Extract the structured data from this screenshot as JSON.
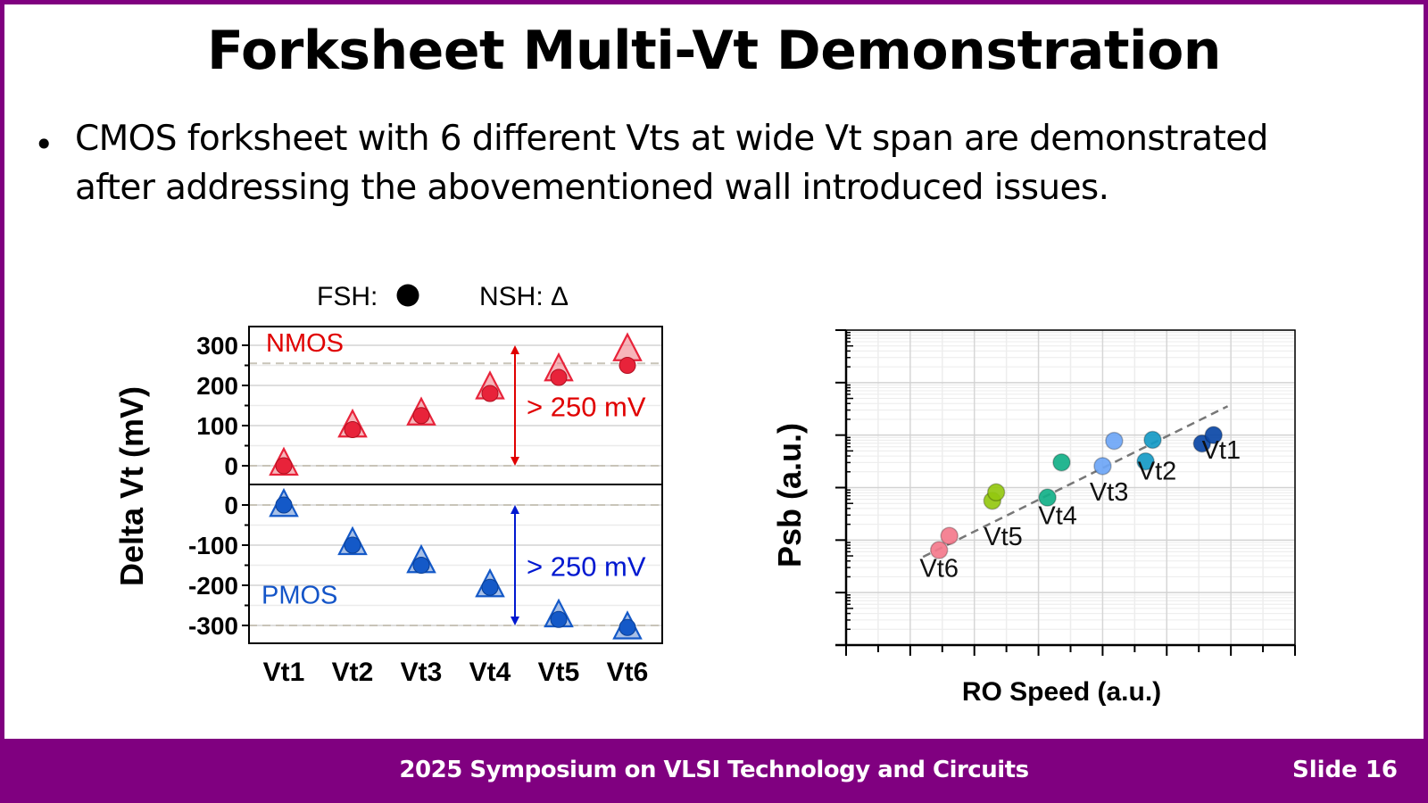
{
  "slide": {
    "title": "Forksheet Multi-Vt Demonstration",
    "bullet": "CMOS forksheet with 6 different Vts at wide Vt span are demonstrated after addressing the abovementioned wall introduced issues.",
    "bullet_line1": "CMOS forksheet with 6 different Vts at wide Vt span are demonstrated",
    "bullet_line2": "after addressing the abovementioned wall introduced issues.",
    "footer": "2025 Symposium on VLSI Technology and Circuits",
    "slide_number": "Slide 16",
    "brand_color": "#800080"
  },
  "chart_data": [
    {
      "type": "scatter",
      "title": "",
      "legend": {
        "position": "top",
        "entries": [
          {
            "label": "FSH:",
            "marker": "circle"
          },
          {
            "label": "NSH:",
            "marker": "triangle",
            "symbol": "Δ"
          }
        ]
      },
      "ylabel": "Delta Vt (mV)",
      "xlabel": "",
      "categories": [
        "Vt1",
        "Vt2",
        "Vt3",
        "Vt4",
        "Vt5",
        "Vt6"
      ],
      "panels": [
        {
          "name": "NMOS",
          "color": "#e8233a",
          "label_color": "#e00000",
          "ylim": [
            -40,
            340
          ],
          "yticks": [
            "300",
            "200",
            "100",
            "0"
          ],
          "ytick_values": [
            300,
            200,
            100,
            0
          ],
          "reference_lines": [
            0,
            255
          ],
          "annotation": "> 250 mV",
          "annotation_range": [
            0,
            300
          ],
          "series": [
            {
              "name": "FSH",
              "marker": "circle",
              "values": [
                0,
                90,
                125,
                180,
                220,
                250
              ]
            },
            {
              "name": "NSH",
              "marker": "triangle",
              "values": [
                0,
                95,
                125,
                190,
                235,
                285
              ]
            }
          ]
        },
        {
          "name": "PMOS",
          "color": "#1459c8",
          "label_color": "#1455c8",
          "ylim": [
            -350,
            25
          ],
          "yticks": [
            "0",
            "-100",
            "-200",
            "-300"
          ],
          "ytick_values": [
            0,
            -100,
            -200,
            -300
          ],
          "reference_lines": [
            0,
            -300
          ],
          "annotation": "> 250 mV",
          "annotation_range": [
            0,
            -300
          ],
          "series": [
            {
              "name": "FSH",
              "marker": "circle",
              "values": [
                0,
                -100,
                -150,
                -205,
                -285,
                -305
              ]
            },
            {
              "name": "NSH",
              "marker": "triangle",
              "values": [
                -5,
                -100,
                -145,
                -205,
                -280,
                -310
              ]
            }
          ]
        }
      ]
    },
    {
      "type": "scatter",
      "title": "",
      "xlabel": "RO Speed (a.u.)",
      "ylabel": "Psb (a.u.)",
      "xscale": "linear",
      "yscale": "log",
      "xlim": [
        0,
        7
      ],
      "ylim": [
        0,
        6
      ],
      "grid": true,
      "points": [
        {
          "group": "Vt6",
          "x": 1.45,
          "y": 1.81,
          "color": "#f47a8c"
        },
        {
          "group": "Vt6",
          "x": 1.61,
          "y": 2.08,
          "color": "#f47a8c"
        },
        {
          "group": "Vt5",
          "x": 2.28,
          "y": 2.75,
          "color": "#94c810"
        },
        {
          "group": "Vt5",
          "x": 2.34,
          "y": 2.91,
          "color": "#94c810"
        },
        {
          "group": "Vt4",
          "x": 3.14,
          "y": 2.81,
          "color": "#12b088"
        },
        {
          "group": "Vt4",
          "x": 3.36,
          "y": 3.48,
          "color": "#12b088"
        },
        {
          "group": "Vt3",
          "x": 4.0,
          "y": 3.41,
          "color": "#6ea6f6"
        },
        {
          "group": "Vt3",
          "x": 4.18,
          "y": 3.89,
          "color": "#6ea6f6"
        },
        {
          "group": "Vt2",
          "x": 4.67,
          "y": 3.5,
          "color": "#159ac6"
        },
        {
          "group": "Vt2",
          "x": 4.78,
          "y": 3.91,
          "color": "#159ac6"
        },
        {
          "group": "Vt1",
          "x": 5.55,
          "y": 3.84,
          "color": "#0a47a6"
        },
        {
          "group": "Vt1",
          "x": 5.73,
          "y": 4.0,
          "color": "#0a47a6"
        }
      ],
      "labels": [
        {
          "text": "Vt6",
          "x": 1.45,
          "y": 1.3
        },
        {
          "text": "Vt5",
          "x": 2.45,
          "y": 1.9
        },
        {
          "text": "Vt4",
          "x": 3.3,
          "y": 2.3
        },
        {
          "text": "Vt3",
          "x": 4.1,
          "y": 2.75
        },
        {
          "text": "Vt2",
          "x": 4.85,
          "y": 3.15
        },
        {
          "text": "Vt1",
          "x": 5.85,
          "y": 3.55
        }
      ],
      "trendline": {
        "style": "dashed",
        "color": "#777777",
        "from": [
          1.2,
          1.68
        ],
        "to": [
          5.95,
          4.55
        ]
      }
    }
  ]
}
